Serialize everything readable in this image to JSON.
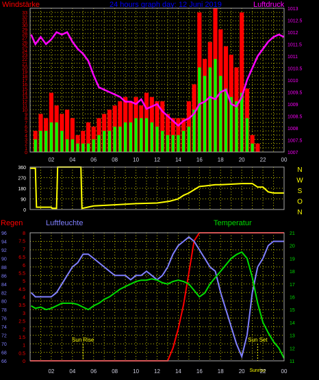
{
  "header": {
    "left_label": "Windstärke",
    "title": "24 hours graph day: 12 Juni 2019",
    "right_label": "Luftdruck"
  },
  "colors": {
    "background": "#000000",
    "grid": "#cccc00",
    "wind_gust": "#ff0000",
    "wind_avg": "#00ff00",
    "pressure": "#ff00ff",
    "direction": "#ffff00",
    "rain": "#ff0000",
    "humidity": "#8080ff",
    "temperature": "#00dd00",
    "sun": "#ffff00",
    "wind_axis": "#ff0000",
    "pressure_axis": "#ff00ff",
    "humidity_axis": "#8080ff",
    "temperature_axis": "#00dd00",
    "rain_axis": "#ff0000"
  },
  "time_axis": {
    "ticks": [
      "02",
      "04",
      "06",
      "08",
      "10",
      "12",
      "14",
      "16",
      "18",
      "20",
      "22",
      "00"
    ]
  },
  "bottom_panel": {
    "rain_label": "Regen",
    "humidity_label": "Luftfeuchte",
    "temperature_label": "Temperatur",
    "sunrise_label": "Sun Rise",
    "sunset_label": "Sun Set",
    "sunset_overlap_label": "Sunrise"
  },
  "direction_panel": {
    "compass_labels": [
      "N",
      "W",
      "S",
      "O",
      "N"
    ],
    "ticks": [
      "360",
      "270",
      "180",
      "90",
      "0"
    ]
  },
  "chart_data": [
    {
      "type": "bar",
      "name": "wind",
      "x_unit": "hour",
      "ylim": [
        0,
        34
      ],
      "yticks": [
        0,
        1,
        2,
        3,
        4,
        5,
        6,
        7,
        8,
        9,
        10,
        11,
        12,
        13,
        14,
        15,
        16,
        17,
        18,
        19,
        20,
        21,
        22,
        23,
        24,
        25,
        26,
        27,
        28,
        29,
        30,
        31,
        32,
        33
      ],
      "x": [
        0.5,
        1.0,
        1.5,
        2.0,
        2.5,
        3.0,
        3.5,
        4.0,
        4.5,
        5.0,
        5.5,
        6.0,
        6.5,
        7.0,
        7.5,
        8.0,
        8.5,
        9.0,
        9.5,
        10.0,
        10.5,
        11.0,
        11.5,
        12.0,
        12.5,
        13.0,
        13.5,
        14.0,
        14.5,
        15.0,
        15.5,
        16.0,
        16.5,
        17.0,
        17.5,
        18.0,
        18.5,
        19.0,
        19.5,
        20.0,
        20.5,
        21.0,
        21.5,
        22.0,
        22.5,
        23.0,
        23.5
      ],
      "series": [
        {
          "values": [
            5,
            9,
            8,
            14,
            11,
            9,
            10,
            8,
            4,
            5,
            7,
            6,
            8,
            9,
            10,
            11,
            12,
            13,
            12,
            13,
            11,
            14,
            13,
            12,
            12,
            9,
            8,
            8,
            8,
            12,
            16,
            33,
            22,
            26,
            34,
            29,
            25,
            23,
            20,
            33,
            15,
            4,
            2,
            0,
            0,
            0,
            0
          ]
        },
        {
          "values": [
            3,
            5,
            5,
            7,
            7,
            5,
            3,
            3,
            2,
            2,
            2,
            3,
            4,
            5,
            5,
            6,
            6,
            7,
            7,
            8,
            8,
            8,
            7,
            6,
            5,
            4,
            4,
            4,
            5,
            6,
            10,
            20,
            18,
            20,
            22,
            18,
            15,
            13,
            12,
            14,
            8,
            2,
            0,
            0,
            0,
            0,
            0
          ]
        }
      ]
    },
    {
      "type": "line",
      "name": "pressure",
      "ylim": [
        1007,
        1013
      ],
      "yticks": [
        "1007",
        "1007.5",
        "1008",
        "1008.5",
        "1009",
        "1009.5",
        "1010",
        "1010.5",
        "1011",
        "1011.5",
        "1012",
        "1012.5",
        "1013"
      ],
      "x": [
        0.1,
        0.5,
        1.0,
        1.5,
        2.0,
        2.5,
        3.0,
        3.5,
        4.0,
        4.5,
        5.0,
        5.5,
        6.0,
        6.5,
        7.0,
        7.5,
        8.0,
        8.5,
        9.0,
        9.5,
        10.0,
        10.5,
        11.0,
        11.5,
        12.0,
        12.5,
        13.0,
        13.5,
        14.0,
        14.5,
        15.0,
        15.5,
        16.0,
        16.5,
        17.0,
        17.5,
        18.0,
        18.5,
        19.0,
        19.5,
        20.0,
        20.5,
        21.0,
        21.5,
        22.0,
        22.5,
        23.0,
        23.5,
        24.0
      ],
      "series": [
        {
          "values": [
            1011.9,
            1011.5,
            1011.8,
            1011.5,
            1011.7,
            1012.0,
            1011.9,
            1012.0,
            1011.6,
            1011.3,
            1011.1,
            1010.8,
            1010.2,
            1009.7,
            1009.6,
            1009.5,
            1009.4,
            1009.3,
            1009.1,
            1009.1,
            1009.0,
            1009.2,
            1008.8,
            1008.9,
            1009.0,
            1008.7,
            1008.5,
            1008.3,
            1008.1,
            1008.3,
            1008.4,
            1008.6,
            1009.0,
            1009.1,
            1009.3,
            1009.2,
            1009.5,
            1009.6,
            1009.0,
            1008.9,
            1009.3,
            1010.0,
            1010.5,
            1011.0,
            1011.3,
            1011.6,
            1011.8,
            1011.9,
            1011.8
          ]
        }
      ]
    },
    {
      "type": "line",
      "name": "direction",
      "ylim": [
        0,
        360
      ],
      "yticks": [
        0,
        90,
        180,
        270,
        360
      ],
      "x": [
        0.0,
        0.5,
        0.6,
        2.0,
        2.1,
        2.5,
        2.6,
        4.8,
        4.9,
        6.0,
        8.0,
        10.0,
        12.0,
        13.2,
        14.0,
        14.5,
        15.0,
        16.0,
        16.5,
        17.5,
        18.0,
        19.0,
        20.0,
        21.0,
        21.5,
        22.0,
        22.5,
        23.0,
        24.0
      ],
      "series": [
        {
          "values": [
            350,
            350,
            20,
            20,
            10,
            10,
            360,
            360,
            10,
            30,
            40,
            50,
            55,
            70,
            90,
            120,
            140,
            195,
            200,
            210,
            210,
            215,
            220,
            220,
            190,
            190,
            150,
            140,
            140
          ]
        }
      ]
    },
    {
      "type": "line",
      "name": "humidity",
      "ylim": [
        66,
        96
      ],
      "yticks": [
        66,
        68,
        70,
        72,
        74,
        76,
        78,
        80,
        82,
        84,
        86,
        88,
        90,
        92,
        94,
        96
      ],
      "x": [
        0.1,
        0.5,
        1.0,
        1.5,
        2.0,
        2.5,
        3.0,
        3.5,
        4.0,
        4.5,
        5.0,
        5.5,
        6.0,
        6.5,
        7.0,
        7.5,
        8.0,
        8.5,
        9.0,
        9.5,
        10.0,
        10.5,
        11.0,
        11.5,
        12.0,
        12.5,
        13.0,
        13.5,
        14.0,
        14.5,
        15.0,
        15.5,
        16.0,
        16.5,
        17.0,
        17.5,
        18.0,
        18.5,
        19.0,
        19.5,
        20.0,
        20.5,
        21.0,
        21.5,
        22.0,
        22.5,
        23.0,
        23.5,
        24.0
      ],
      "series": [
        {
          "values": [
            82,
            81,
            81,
            81,
            81,
            82,
            84,
            86,
            88,
            89,
            91,
            91,
            90,
            89,
            88,
            87,
            86,
            86,
            86,
            85,
            86,
            86,
            87,
            86,
            85,
            86,
            88,
            91,
            93,
            94,
            95,
            94,
            92,
            90,
            88,
            87,
            82,
            78,
            74,
            70,
            67,
            72,
            82,
            88,
            90,
            93,
            94,
            94,
            94
          ]
        }
      ]
    },
    {
      "type": "line",
      "name": "temperature",
      "ylim": [
        11,
        21
      ],
      "yticks": [
        11,
        12,
        13,
        14,
        15,
        16,
        17,
        18,
        19,
        20,
        21
      ],
      "x": [
        0.1,
        0.5,
        1.0,
        1.5,
        2.0,
        2.5,
        3.0,
        3.5,
        4.0,
        4.5,
        5.0,
        5.5,
        6.0,
        6.5,
        7.0,
        7.5,
        8.0,
        8.5,
        9.0,
        9.5,
        10.0,
        10.5,
        11.0,
        11.5,
        12.0,
        12.5,
        13.0,
        13.5,
        14.0,
        14.5,
        15.0,
        15.5,
        16.0,
        16.5,
        17.0,
        17.5,
        18.0,
        18.5,
        19.0,
        19.5,
        20.0,
        20.5,
        21.0,
        21.5,
        22.0,
        22.5,
        23.0,
        23.5,
        24.0
      ],
      "series": [
        {
          "values": [
            15.3,
            15.1,
            15.2,
            15.0,
            15.1,
            15.3,
            15.5,
            15.5,
            15.5,
            15.4,
            15.2,
            15.0,
            15.3,
            15.5,
            15.8,
            16.0,
            16.3,
            16.6,
            16.8,
            17.0,
            17.2,
            17.3,
            17.3,
            17.4,
            17.3,
            17.1,
            17.0,
            17.2,
            17.3,
            17.2,
            17.0,
            16.5,
            16.0,
            16.3,
            17.0,
            17.5,
            18.0,
            18.5,
            19.0,
            19.3,
            19.5,
            19.0,
            17.5,
            15.5,
            14.0,
            13.2,
            12.5,
            12.0,
            11.2
          ]
        }
      ]
    },
    {
      "type": "line",
      "name": "rain",
      "ylim": [
        0,
        8
      ],
      "yticks": [
        "0",
        "0.5",
        "1",
        "1.5",
        "2",
        "2.5",
        "3",
        "3.5",
        "4",
        "4.5",
        "5",
        "5.5",
        "6",
        "6.5",
        "7",
        "7.5",
        "8"
      ],
      "x": [
        0.0,
        12.0,
        13.0,
        13.5,
        14.0,
        14.5,
        15.0,
        15.5,
        16.0,
        24.0
      ],
      "series": [
        {
          "values": [
            0,
            0,
            0,
            0.8,
            2.0,
            3.5,
            5.5,
            7.5,
            8.0,
            8.0
          ]
        }
      ]
    }
  ]
}
